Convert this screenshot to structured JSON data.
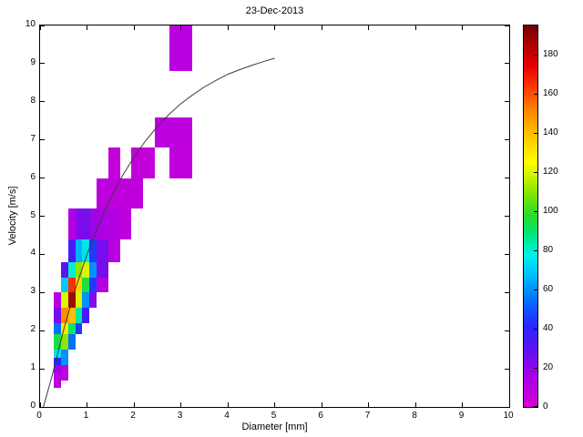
{
  "chart_data": {
    "type": "heatmap",
    "title": "23-Dec-2013",
    "xlabel": "Diameter [mm]",
    "ylabel": "Velocity [m/s]",
    "xlim": [
      0,
      10
    ],
    "ylim": [
      0,
      10
    ],
    "x_ticks": [
      0,
      1,
      2,
      3,
      4,
      5,
      6,
      7,
      8,
      9,
      10
    ],
    "y_ticks": [
      0,
      1,
      2,
      3,
      4,
      5,
      6,
      7,
      8,
      9,
      10
    ],
    "colorbar": {
      "min": 0,
      "max": 195,
      "ticks": [
        0,
        20,
        40,
        60,
        80,
        100,
        120,
        140,
        160,
        180
      ],
      "stops": [
        [
          0,
          "#d400d4"
        ],
        [
          15,
          "#aa00e6"
        ],
        [
          30,
          "#5a14f0"
        ],
        [
          42,
          "#2828ff"
        ],
        [
          55,
          "#0073ff"
        ],
        [
          68,
          "#00c3ff"
        ],
        [
          78,
          "#00f2e6"
        ],
        [
          88,
          "#00e67d"
        ],
        [
          98,
          "#28dc28"
        ],
        [
          110,
          "#8ce600"
        ],
        [
          125,
          "#ffff00"
        ],
        [
          140,
          "#ffbe00"
        ],
        [
          152,
          "#ff8200"
        ],
        [
          163,
          "#ff3c00"
        ],
        [
          174,
          "#e60000"
        ],
        [
          186,
          "#aa0000"
        ],
        [
          195,
          "#730000"
        ]
      ]
    },
    "cells": [
      {
        "d": [
          0.3,
          0.45
        ],
        "v": [
          0.5,
          0.9
        ],
        "n": 10
      },
      {
        "d": [
          0.3,
          0.45
        ],
        "v": [
          0.9,
          1.1
        ],
        "n": 18
      },
      {
        "d": [
          0.3,
          0.45
        ],
        "v": [
          1.1,
          1.3
        ],
        "n": 42
      },
      {
        "d": [
          0.3,
          0.45
        ],
        "v": [
          1.3,
          1.5
        ],
        "n": 75
      },
      {
        "d": [
          0.3,
          0.45
        ],
        "v": [
          1.5,
          1.9
        ],
        "n": 95
      },
      {
        "d": [
          0.3,
          0.45
        ],
        "v": [
          1.9,
          2.2
        ],
        "n": 55
      },
      {
        "d": [
          0.3,
          0.45
        ],
        "v": [
          2.2,
          2.6
        ],
        "n": 25
      },
      {
        "d": [
          0.3,
          0.45
        ],
        "v": [
          2.6,
          3.0
        ],
        "n": 10
      },
      {
        "d": [
          0.45,
          0.6
        ],
        "v": [
          0.7,
          1.1
        ],
        "n": 8
      },
      {
        "d": [
          0.45,
          0.6
        ],
        "v": [
          1.1,
          1.5
        ],
        "n": 60
      },
      {
        "d": [
          0.45,
          0.6
        ],
        "v": [
          1.5,
          1.9
        ],
        "n": 110
      },
      {
        "d": [
          0.45,
          0.6
        ],
        "v": [
          1.9,
          2.2
        ],
        "n": 130
      },
      {
        "d": [
          0.45,
          0.6
        ],
        "v": [
          2.2,
          2.6
        ],
        "n": 150
      },
      {
        "d": [
          0.45,
          0.6
        ],
        "v": [
          2.6,
          3.0
        ],
        "n": 120
      },
      {
        "d": [
          0.45,
          0.6
        ],
        "v": [
          3.0,
          3.4
        ],
        "n": 70
      },
      {
        "d": [
          0.45,
          0.6
        ],
        "v": [
          3.4,
          3.8
        ],
        "n": 30
      },
      {
        "d": [
          0.6,
          0.75
        ],
        "v": [
          1.5,
          1.9
        ],
        "n": 55
      },
      {
        "d": [
          0.6,
          0.75
        ],
        "v": [
          1.9,
          2.2
        ],
        "n": 90
      },
      {
        "d": [
          0.6,
          0.75
        ],
        "v": [
          2.2,
          2.6
        ],
        "n": 140
      },
      {
        "d": [
          0.6,
          0.75
        ],
        "v": [
          2.6,
          3.0
        ],
        "n": 185
      },
      {
        "d": [
          0.6,
          0.75
        ],
        "v": [
          3.0,
          3.4
        ],
        "n": 165
      },
      {
        "d": [
          0.6,
          0.75
        ],
        "v": [
          3.4,
          3.8
        ],
        "n": 80
      },
      {
        "d": [
          0.6,
          0.75
        ],
        "v": [
          3.8,
          4.4
        ],
        "n": 35
      },
      {
        "d": [
          0.6,
          0.75
        ],
        "v": [
          4.4,
          5.2
        ],
        "n": 12
      },
      {
        "d": [
          0.75,
          0.9
        ],
        "v": [
          1.9,
          2.2
        ],
        "n": 45
      },
      {
        "d": [
          0.75,
          0.9
        ],
        "v": [
          2.2,
          2.6
        ],
        "n": 85
      },
      {
        "d": [
          0.75,
          0.9
        ],
        "v": [
          2.6,
          3.0
        ],
        "n": 120
      },
      {
        "d": [
          0.75,
          0.9
        ],
        "v": [
          3.0,
          3.4
        ],
        "n": 135
      },
      {
        "d": [
          0.75,
          0.9
        ],
        "v": [
          3.4,
          3.8
        ],
        "n": 110
      },
      {
        "d": [
          0.75,
          0.9
        ],
        "v": [
          3.8,
          4.4
        ],
        "n": 65
      },
      {
        "d": [
          0.75,
          0.9
        ],
        "v": [
          4.4,
          5.2
        ],
        "n": 22
      },
      {
        "d": [
          0.9,
          1.05
        ],
        "v": [
          2.2,
          2.6
        ],
        "n": 35
      },
      {
        "d": [
          0.9,
          1.05
        ],
        "v": [
          2.6,
          3.0
        ],
        "n": 60
      },
      {
        "d": [
          0.9,
          1.05
        ],
        "v": [
          3.0,
          3.4
        ],
        "n": 95
      },
      {
        "d": [
          0.9,
          1.05
        ],
        "v": [
          3.4,
          3.8
        ],
        "n": 120
      },
      {
        "d": [
          0.9,
          1.05
        ],
        "v": [
          3.8,
          4.4
        ],
        "n": 75
      },
      {
        "d": [
          0.9,
          1.05
        ],
        "v": [
          4.4,
          5.2
        ],
        "n": 25
      },
      {
        "d": [
          1.05,
          1.2
        ],
        "v": [
          2.6,
          3.0
        ],
        "n": 22
      },
      {
        "d": [
          1.05,
          1.2
        ],
        "v": [
          3.0,
          3.4
        ],
        "n": 45
      },
      {
        "d": [
          1.05,
          1.2
        ],
        "v": [
          3.4,
          3.8
        ],
        "n": 60
      },
      {
        "d": [
          1.05,
          1.2
        ],
        "v": [
          3.8,
          4.4
        ],
        "n": 45
      },
      {
        "d": [
          1.05,
          1.2
        ],
        "v": [
          4.4,
          5.2
        ],
        "n": 18
      },
      {
        "d": [
          1.2,
          1.45
        ],
        "v": [
          3.0,
          3.4
        ],
        "n": 12
      },
      {
        "d": [
          1.2,
          1.45
        ],
        "v": [
          3.4,
          3.8
        ],
        "n": 25
      },
      {
        "d": [
          1.2,
          1.45
        ],
        "v": [
          3.8,
          4.4
        ],
        "n": 25
      },
      {
        "d": [
          1.2,
          1.45
        ],
        "v": [
          4.4,
          5.2
        ],
        "n": 14
      },
      {
        "d": [
          1.2,
          1.45
        ],
        "v": [
          5.2,
          6.0
        ],
        "n": 8
      },
      {
        "d": [
          1.45,
          1.7
        ],
        "v": [
          3.8,
          4.4
        ],
        "n": 10
      },
      {
        "d": [
          1.45,
          1.7
        ],
        "v": [
          4.4,
          5.2
        ],
        "n": 12
      },
      {
        "d": [
          1.45,
          1.7
        ],
        "v": [
          5.2,
          6.0
        ],
        "n": 8
      },
      {
        "d": [
          1.45,
          1.7
        ],
        "v": [
          6.0,
          6.8
        ],
        "n": 6
      },
      {
        "d": [
          1.7,
          1.95
        ],
        "v": [
          4.4,
          5.2
        ],
        "n": 8
      },
      {
        "d": [
          1.7,
          1.95
        ],
        "v": [
          5.2,
          6.0
        ],
        "n": 8
      },
      {
        "d": [
          1.95,
          2.2
        ],
        "v": [
          5.2,
          6.0
        ],
        "n": 7
      },
      {
        "d": [
          1.95,
          2.2
        ],
        "v": [
          6.0,
          6.8
        ],
        "n": 6
      },
      {
        "d": [
          2.2,
          2.45
        ],
        "v": [
          6.0,
          6.8
        ],
        "n": 6
      },
      {
        "d": [
          2.45,
          3.25
        ],
        "v": [
          6.8,
          7.6
        ],
        "n": 8
      },
      {
        "d": [
          2.75,
          3.25
        ],
        "v": [
          6.0,
          6.8
        ],
        "n": 7
      },
      {
        "d": [
          2.75,
          3.25
        ],
        "v": [
          8.8,
          10.0
        ],
        "n": 9
      }
    ],
    "fit_curve": {
      "x": [
        0.07,
        0.25,
        0.5,
        0.75,
        1.0,
        1.25,
        1.5,
        1.75,
        2.0,
        2.25,
        2.5,
        2.75,
        3.0,
        3.25,
        3.5,
        3.75,
        4.0,
        4.25,
        4.5,
        4.75,
        5.0
      ],
      "y": [
        0,
        0.79,
        2.02,
        3.08,
        4.0,
        4.78,
        5.46,
        6.05,
        6.55,
        6.98,
        7.35,
        7.67,
        7.95,
        8.18,
        8.39,
        8.56,
        8.72,
        8.84,
        8.95,
        9.05,
        9.14
      ],
      "color": "#3c3c3c"
    },
    "legend": null,
    "grid": false
  }
}
